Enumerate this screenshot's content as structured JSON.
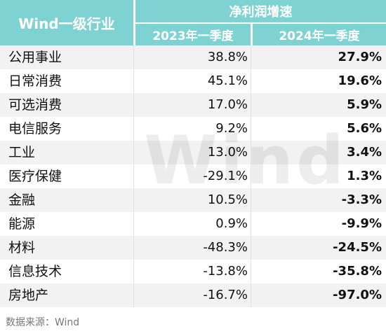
{
  "header": {
    "industry": "Wind一级行业",
    "growth": "净利润增速",
    "col_2023": "2023年一季度",
    "col_2024": "2024年一季度"
  },
  "rows": [
    {
      "industry": "公用事业",
      "v2023": "38.8%",
      "v2024": "27.9%"
    },
    {
      "industry": "日常消费",
      "v2023": "45.1%",
      "v2024": "19.6%"
    },
    {
      "industry": "可选消费",
      "v2023": "17.0%",
      "v2024": "5.9%"
    },
    {
      "industry": "电信服务",
      "v2023": "9.2%",
      "v2024": "5.6%"
    },
    {
      "industry": "工业",
      "v2023": "13.0%",
      "v2024": "3.4%"
    },
    {
      "industry": "医疗保健",
      "v2023": "-29.1%",
      "v2024": "1.3%"
    },
    {
      "industry": "金融",
      "v2023": "10.5%",
      "v2024": "-3.3%"
    },
    {
      "industry": "能源",
      "v2023": "0.9%",
      "v2024": "-9.9%"
    },
    {
      "industry": "材料",
      "v2023": "-48.3%",
      "v2024": "-24.5%"
    },
    {
      "industry": "信息技术",
      "v2023": "-13.8%",
      "v2024": "-35.8%"
    },
    {
      "industry": "房地产",
      "v2023": "-16.7%",
      "v2024": "-97.0%"
    }
  ],
  "watermark": "Wind",
  "source": "数据来源：Wind",
  "colors": {
    "header_bg": "#7fd2d2",
    "stripe": "#f2f2f2"
  }
}
